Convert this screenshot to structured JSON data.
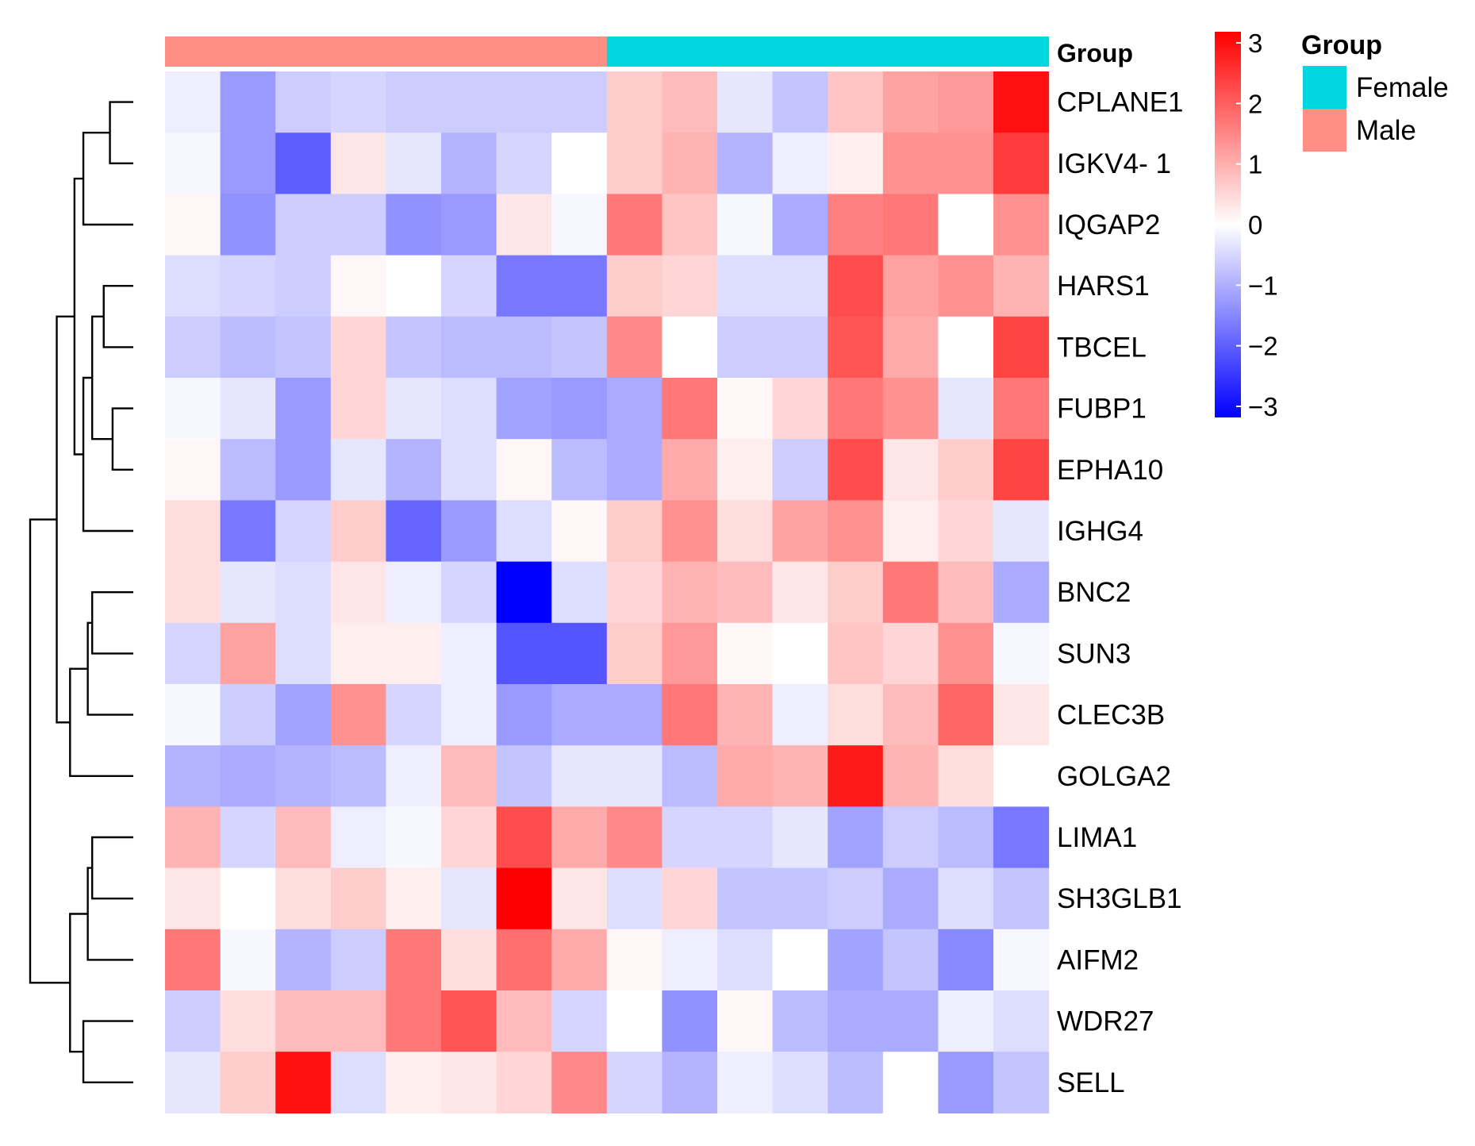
{
  "chart_data": {
    "type": "heatmap",
    "rows": [
      "CPLANE1",
      "IGKV4- 1",
      "IQGAP2",
      "HARS1",
      "TBCEL",
      "FUBP1",
      "EPHA10",
      "IGHG4",
      "BNC2",
      "SUN3",
      "CLEC3B",
      "GOLGA2",
      "LIMA1",
      "SH3GLB1",
      "AIFM2",
      "WDR27",
      "SELL"
    ],
    "column_groups": [
      "Male",
      "Male",
      "Male",
      "Male",
      "Male",
      "Male",
      "Male",
      "Male",
      "Female",
      "Female",
      "Female",
      "Female",
      "Female",
      "Female",
      "Female",
      "Female"
    ],
    "values": [
      [
        -0.2,
        -1.2,
        -0.6,
        -0.5,
        -0.6,
        -0.6,
        -0.6,
        -0.6,
        0.6,
        0.8,
        -0.3,
        -0.7,
        0.7,
        1.1,
        1.2,
        2.8
      ],
      [
        -0.1,
        -1.2,
        -1.9,
        0.3,
        -0.3,
        -0.9,
        -0.5,
        0.0,
        0.6,
        0.9,
        -0.9,
        -0.2,
        0.2,
        1.3,
        1.3,
        2.3
      ],
      [
        0.1,
        -1.3,
        -0.6,
        -0.6,
        -1.3,
        -1.2,
        0.3,
        -0.1,
        1.6,
        0.7,
        -0.1,
        -1.0,
        1.5,
        1.6,
        0.0,
        1.3
      ],
      [
        -0.4,
        -0.5,
        -0.6,
        0.1,
        0.0,
        -0.5,
        -1.6,
        -1.6,
        0.6,
        0.5,
        -0.4,
        -0.4,
        2.1,
        1.1,
        1.3,
        0.9
      ],
      [
        -0.6,
        -0.8,
        -0.7,
        0.5,
        -0.7,
        -0.8,
        -0.8,
        -0.7,
        1.4,
        0.0,
        -0.6,
        -0.6,
        2.0,
        1.0,
        0.0,
        2.2
      ],
      [
        -0.1,
        -0.3,
        -1.2,
        0.5,
        -0.3,
        -0.4,
        -1.1,
        -1.2,
        -1.0,
        1.6,
        0.1,
        0.5,
        1.6,
        1.3,
        -0.3,
        1.6
      ],
      [
        0.1,
        -0.8,
        -1.2,
        -0.3,
        -0.9,
        -0.4,
        0.1,
        -0.8,
        -1.0,
        1.0,
        0.2,
        -0.6,
        2.1,
        0.3,
        0.6,
        2.2
      ],
      [
        0.4,
        -1.6,
        -0.5,
        0.6,
        -1.8,
        -1.2,
        -0.4,
        0.1,
        0.6,
        1.3,
        0.4,
        1.1,
        1.3,
        0.2,
        0.5,
        -0.3
      ],
      [
        0.4,
        -0.3,
        -0.4,
        0.3,
        -0.2,
        -0.5,
        -3.0,
        -0.4,
        0.5,
        0.9,
        0.8,
        0.3,
        0.6,
        1.6,
        0.8,
        -1.0
      ],
      [
        -0.5,
        1.1,
        -0.4,
        0.2,
        0.2,
        -0.2,
        -2.0,
        -2.0,
        0.6,
        1.2,
        0.1,
        0.0,
        0.7,
        0.5,
        1.3,
        -0.1
      ],
      [
        -0.1,
        -0.6,
        -1.1,
        1.3,
        -0.5,
        -0.2,
        -1.2,
        -1.0,
        -1.0,
        1.6,
        0.9,
        -0.2,
        0.4,
        0.8,
        1.8,
        0.3
      ],
      [
        -0.9,
        -1.0,
        -0.9,
        -0.8,
        -0.2,
        0.8,
        -0.7,
        -0.3,
        -0.3,
        -0.8,
        1.0,
        0.9,
        2.7,
        0.9,
        0.4,
        0.0
      ],
      [
        0.9,
        -0.5,
        0.8,
        -0.2,
        -0.1,
        0.5,
        2.1,
        1.0,
        1.4,
        -0.5,
        -0.5,
        -0.3,
        -1.1,
        -0.6,
        -0.8,
        -1.6
      ],
      [
        0.3,
        0.0,
        0.4,
        0.6,
        0.2,
        -0.3,
        3.0,
        0.3,
        -0.4,
        0.5,
        -0.7,
        -0.7,
        -0.6,
        -1.0,
        -0.4,
        -0.7
      ],
      [
        1.6,
        -0.1,
        -0.9,
        -0.6,
        1.6,
        0.4,
        1.7,
        1.0,
        0.1,
        -0.2,
        -0.4,
        0.0,
        -1.1,
        -0.7,
        -1.4,
        -0.1
      ],
      [
        -0.6,
        0.4,
        0.8,
        0.8,
        1.6,
        2.0,
        0.8,
        -0.5,
        0.0,
        -1.3,
        0.1,
        -0.8,
        -1.0,
        -1.0,
        -0.2,
        -0.4
      ],
      [
        -0.3,
        0.6,
        2.8,
        -0.4,
        0.2,
        0.3,
        0.5,
        1.4,
        -0.5,
        -0.9,
        -0.2,
        -0.4,
        -0.8,
        0.0,
        -1.2,
        -0.7
      ]
    ],
    "colorscale": {
      "min": -3,
      "max": 3,
      "low": "#0000ff",
      "mid": "#ffffff",
      "high": "#ff0000"
    },
    "colorbar_ticks": [
      "3",
      "2",
      "1",
      "0",
      "−1",
      "−2",
      "−3"
    ],
    "colorbar_tick_values": [
      3,
      2,
      1,
      0,
      -1,
      -2,
      -3
    ],
    "annotation_label": "Group",
    "legend": {
      "title": "Group",
      "items": [
        {
          "label": "Female",
          "color": "#00d7de"
        },
        {
          "label": "Male",
          "color": "#ff8f85"
        }
      ]
    },
    "row_dendrogram": {
      "merges": [
        [
          -1,
          -2,
          0.55
        ],
        [
          1,
          -3,
          0.85
        ],
        [
          -4,
          -5,
          0.62
        ],
        [
          -6,
          -7,
          0.52
        ],
        [
          3,
          4,
          0.75
        ],
        [
          5,
          -8,
          0.85
        ],
        [
          2,
          6,
          0.95
        ],
        [
          -9,
          -10,
          0.75
        ],
        [
          8,
          -11,
          0.8
        ],
        [
          9,
          -12,
          1.0
        ],
        [
          7,
          10,
          1.15
        ],
        [
          -13,
          -14,
          0.75
        ],
        [
          12,
          -15,
          0.8
        ],
        [
          -16,
          -17,
          0.85
        ],
        [
          13,
          14,
          1.0
        ],
        [
          11,
          15,
          1.45
        ]
      ]
    }
  }
}
